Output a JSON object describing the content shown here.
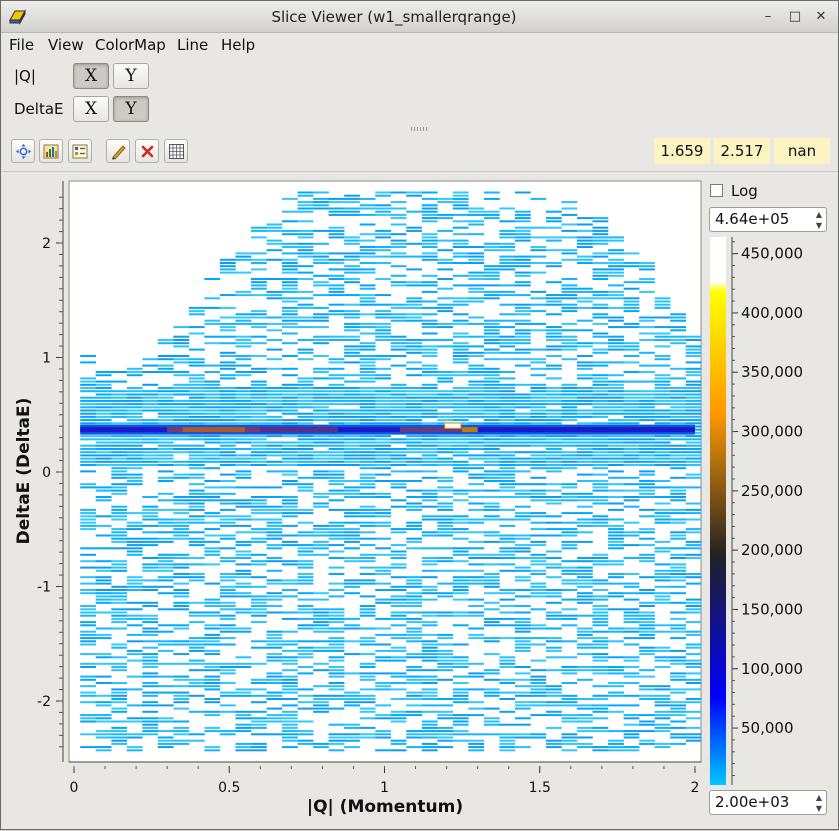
{
  "window": {
    "title": "Slice Viewer (w1_smallerqrange)"
  },
  "menu": {
    "items": [
      "File",
      "View",
      "ColorMap",
      "Line",
      "Help"
    ]
  },
  "dimensions": {
    "rows": [
      {
        "label": "|Q|",
        "x_label": "X",
        "y_label": "Y",
        "selected": "X"
      },
      {
        "label": "DeltaE",
        "x_label": "X",
        "y_label": "Y",
        "selected": "Y"
      }
    ]
  },
  "toolbar": {
    "icons": [
      "zoom-fit-icon",
      "peaks-icon",
      "rebin-icon",
      "line-cut-icon",
      "clear-line-icon",
      "grid-icon"
    ],
    "coords": {
      "x": "1.659",
      "y": "2.517",
      "value": "nan"
    }
  },
  "colorscale": {
    "log_label": "Log",
    "max": "4.64e+05",
    "min": "2.00e+03",
    "tick_labels": [
      "450,000",
      "400,000",
      "350,000",
      "300,000",
      "250,000",
      "200,000",
      "150,000",
      "100,000",
      "50,000"
    ],
    "tick_values": [
      450000,
      400000,
      350000,
      300000,
      250000,
      200000,
      150000,
      100000,
      50000
    ],
    "colors": [
      "#00c8ff",
      "#0000ff",
      "#ff9900",
      "#ffff00",
      "#ffffff"
    ]
  },
  "chart_data": {
    "type": "heatmap",
    "xlabel": "|Q| (Momentum)",
    "ylabel": "DeltaE (DeltaE)",
    "xlim": [
      0,
      2
    ],
    "ylim": [
      -2.5,
      2.5
    ],
    "x_ticks": [
      0,
      0.5,
      1,
      1.5,
      2
    ],
    "x_tick_labels": [
      "0",
      "0.5",
      "1",
      "1.5",
      "2"
    ],
    "y_ticks": [
      -2,
      -1,
      0,
      1,
      2
    ],
    "y_tick_labels": [
      "-2",
      "-1",
      "0",
      "1",
      "2"
    ],
    "bright_band": {
      "deltaE": 0.37,
      "q_range": [
        0.02,
        2.0
      ]
    },
    "peak": {
      "q": 1.22,
      "deltaE": 0.4
    },
    "upper_coverage_edge": [
      [
        0.02,
        1.0
      ],
      [
        0.1,
        0.85
      ],
      [
        0.2,
        0.95
      ],
      [
        0.3,
        1.25
      ],
      [
        0.4,
        1.6
      ],
      [
        0.5,
        1.95
      ],
      [
        0.6,
        2.2
      ],
      [
        0.7,
        2.45
      ],
      [
        1.0,
        2.45
      ],
      [
        1.5,
        2.45
      ],
      [
        1.6,
        2.3
      ],
      [
        1.75,
        2.1
      ],
      [
        1.85,
        1.75
      ],
      [
        1.95,
        1.25
      ],
      [
        2.0,
        1.1
      ]
    ],
    "lower_limit": -2.45
  }
}
